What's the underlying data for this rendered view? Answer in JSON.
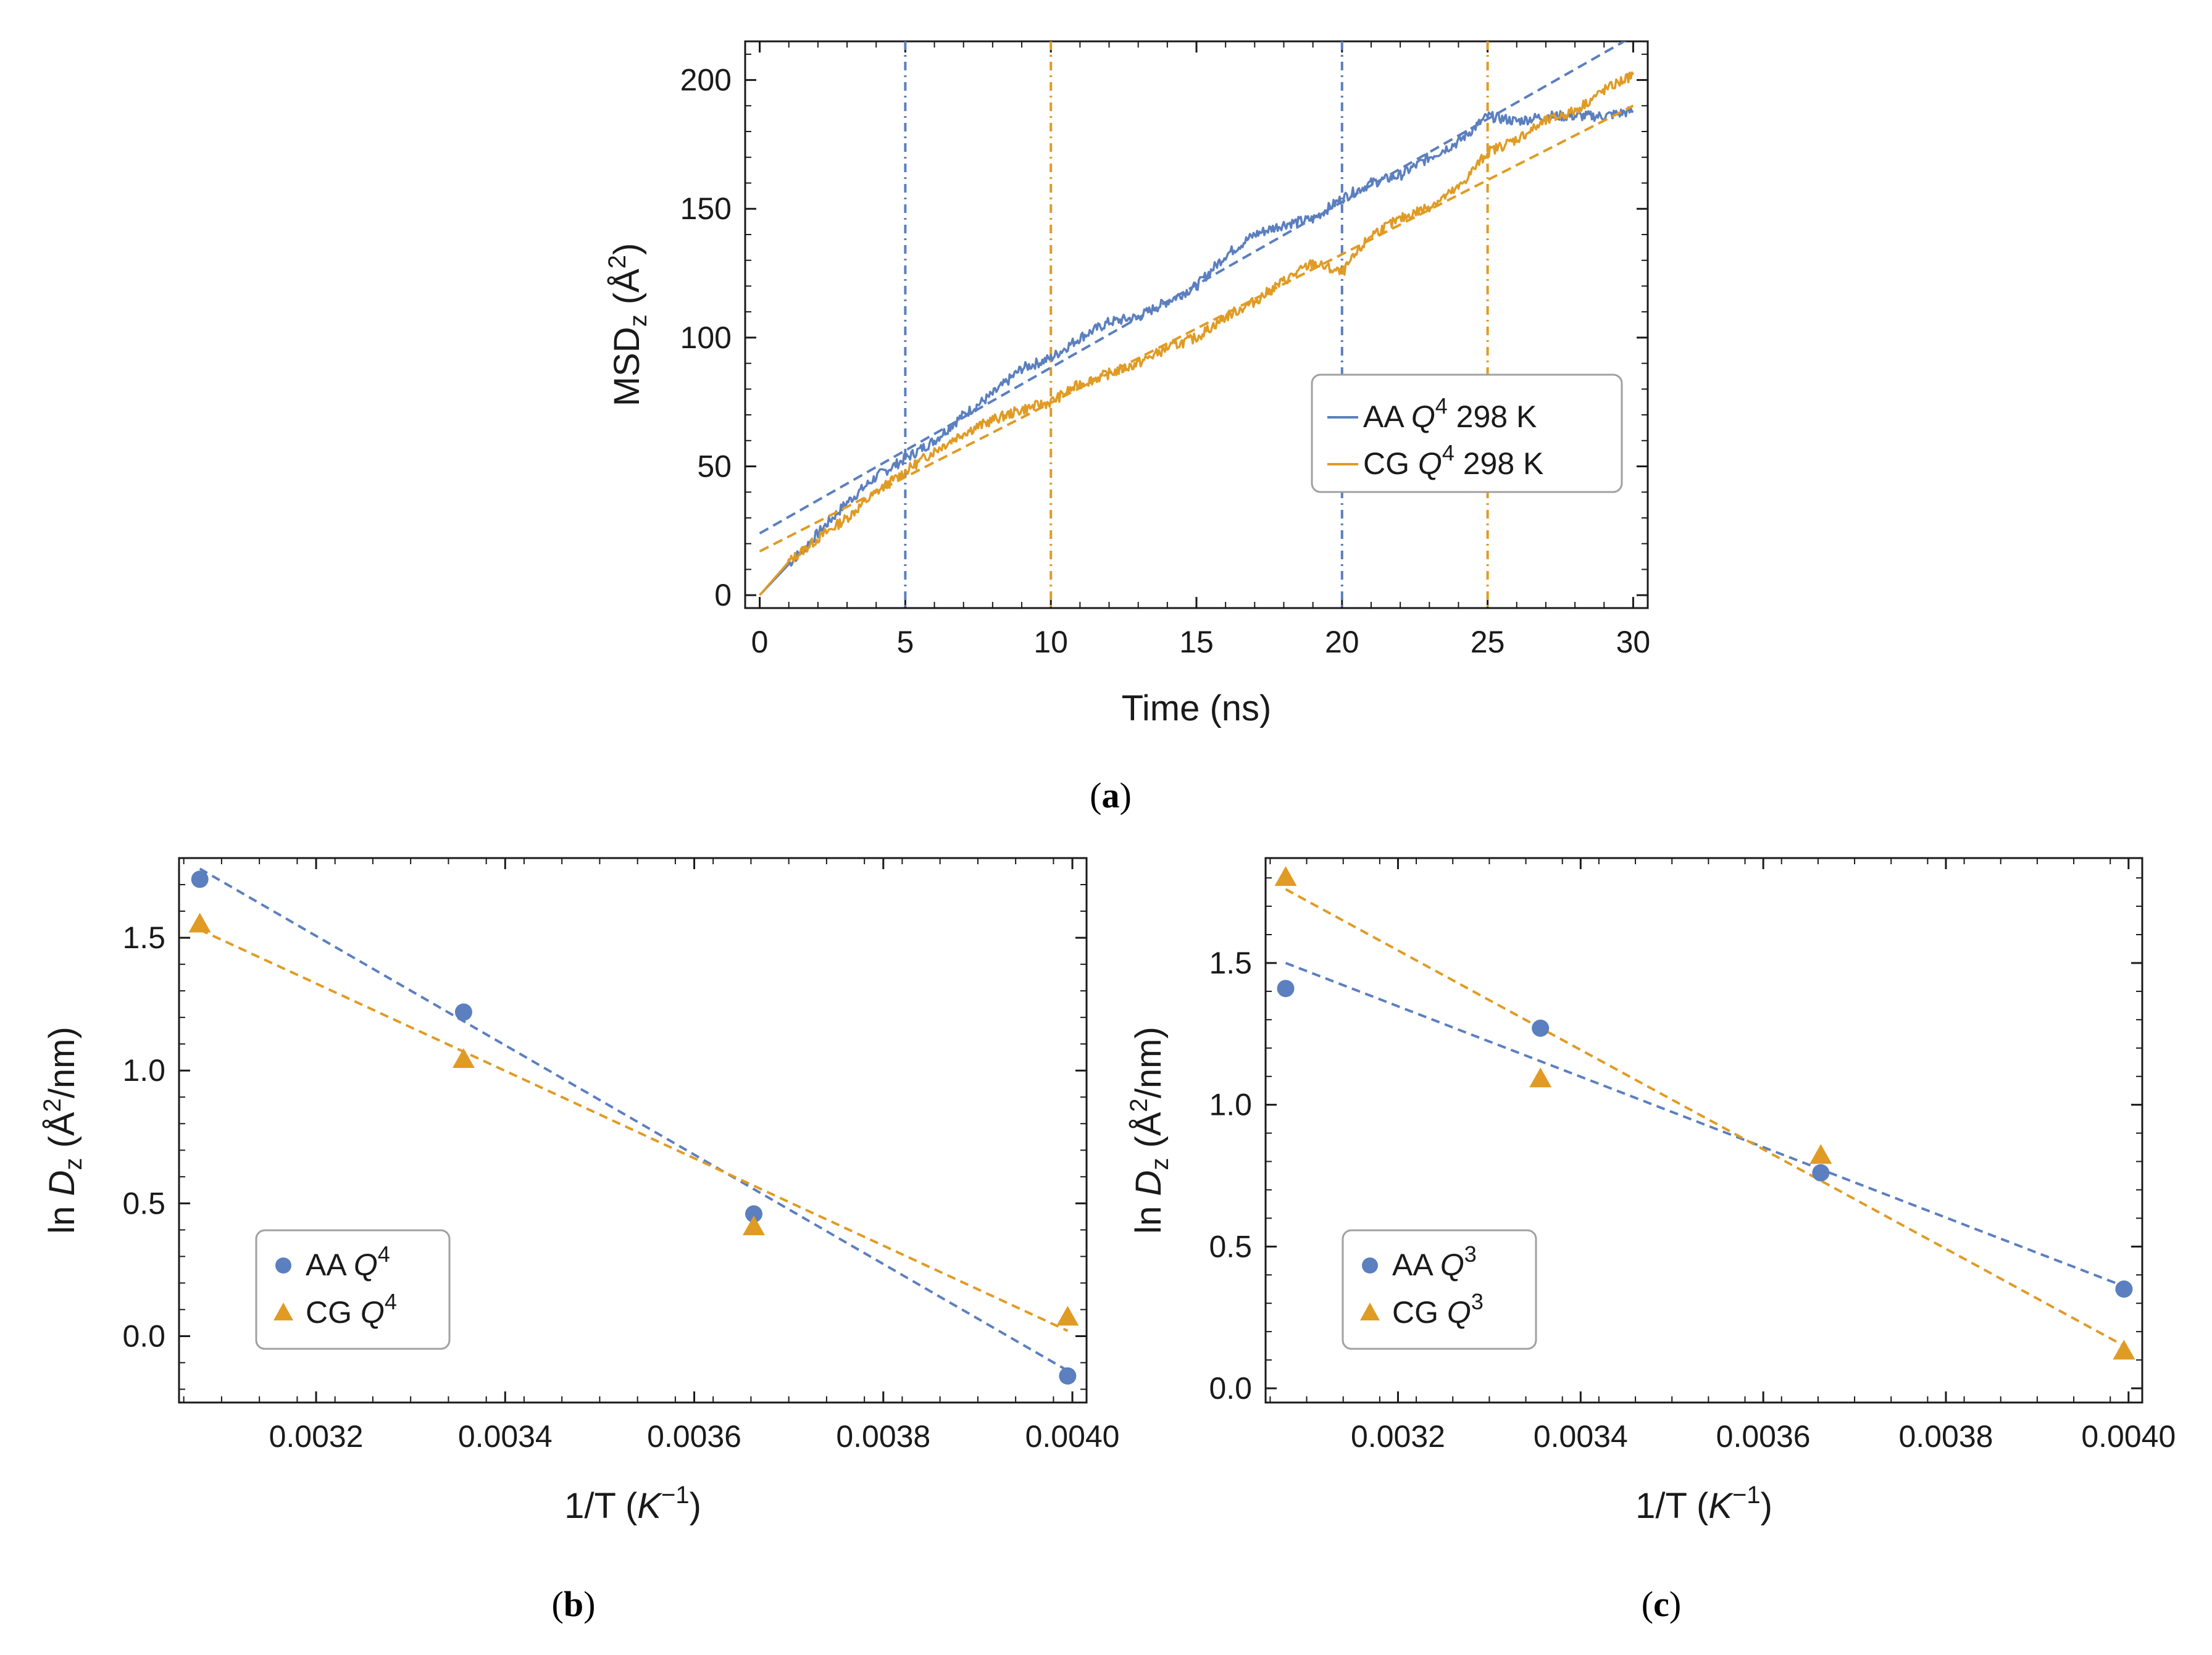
{
  "colors": {
    "aa": "#5b7fbf",
    "cg": "#e09b24",
    "axis": "#1a1a1a",
    "legend_border": "#a0a0a0"
  },
  "chart_data": [
    {
      "id": "a",
      "type": "line",
      "caption_letter": "a",
      "xlabel": "Time (ns)",
      "ylabel_main": "MSD",
      "ylabel_sub": "z",
      "ylabel_unit": " (Å",
      "ylabel_sup": "2",
      "ylabel_close": ")",
      "xlim": [
        -0.5,
        30.5
      ],
      "ylim": [
        -5,
        215
      ],
      "xticks": [
        0,
        5,
        10,
        15,
        20,
        25,
        30
      ],
      "yticks": [
        0,
        50,
        100,
        150,
        200
      ],
      "vlines": [
        {
          "x": 5,
          "series": "aa"
        },
        {
          "x": 20,
          "series": "aa"
        },
        {
          "x": 10,
          "series": "cg"
        },
        {
          "x": 25,
          "series": "cg"
        }
      ],
      "series": [
        {
          "key": "aa",
          "name": "AA",
          "q": "Q",
          "q_sup": "4",
          "suffix": " 298 K",
          "x": [
            0,
            1,
            2,
            3,
            4,
            5,
            6,
            7,
            8,
            9,
            10,
            11,
            12,
            13,
            14,
            15,
            16,
            17,
            18,
            19,
            20,
            21,
            22,
            23,
            24,
            25,
            26,
            27,
            28,
            29,
            30
          ],
          "y": [
            0,
            12,
            24,
            36,
            46,
            53,
            60,
            70,
            78,
            88,
            92,
            100,
            106,
            108,
            114,
            120,
            132,
            140,
            144,
            146,
            154,
            160,
            163,
            170,
            176,
            186,
            184,
            186,
            186,
            186,
            188
          ],
          "fit": {
            "x": [
              0,
              30
            ],
            "y": [
              24,
              217
            ]
          }
        },
        {
          "key": "cg",
          "name": "CG",
          "q": "Q",
          "q_sup": "4",
          "suffix": " 298 K",
          "x": [
            0,
            1,
            2,
            3,
            4,
            5,
            6,
            7,
            8,
            9,
            10,
            11,
            12,
            13,
            14,
            15,
            16,
            17,
            18,
            19,
            20,
            21,
            22,
            23,
            24,
            25,
            26,
            27,
            28,
            29,
            30
          ],
          "y": [
            0,
            13,
            22,
            30,
            40,
            48,
            56,
            63,
            68,
            72,
            75,
            82,
            86,
            90,
            96,
            100,
            108,
            114,
            122,
            129,
            125,
            140,
            146,
            151,
            158,
            172,
            177,
            184,
            188,
            196,
            202
          ],
          "fit": {
            "x": [
              0,
              30
            ],
            "y": [
              17,
              190
            ]
          }
        }
      ]
    },
    {
      "id": "b",
      "type": "scatter",
      "caption_letter": "b",
      "xlabel": "1/T (",
      "xlabel_italic": "K",
      "xlabel_sup": "−1",
      "xlabel_close": ")",
      "ylabel_main": "ln ",
      "ylabel_italic": "D",
      "ylabel_sub": "z",
      "ylabel_unit": " (Å",
      "ylabel_sup": "2",
      "ylabel_close": "/nm)",
      "xlim": [
        0.003055,
        0.004015
      ],
      "ylim": [
        -0.25,
        1.8
      ],
      "xticks": [
        0.0032,
        0.0034,
        0.0036,
        0.0038,
        0.004
      ],
      "xtick_labels": [
        "0.0032",
        "0.0034",
        "0.0036",
        "0.0038",
        "0.0040"
      ],
      "yticks": [
        0,
        0.5,
        1,
        1.5
      ],
      "ytick_labels": [
        "0.0",
        "0.5",
        "1.0",
        "1.5"
      ],
      "series": [
        {
          "key": "aa",
          "name": "AA",
          "q": "Q",
          "q_sup": "4",
          "marker": "circle",
          "x": [
            0.003077,
            0.003356,
            0.003663,
            0.003995
          ],
          "y": [
            1.72,
            1.22,
            0.46,
            -0.15
          ],
          "fit": {
            "x": [
              0.003077,
              0.003995
            ],
            "y": [
              1.76,
              -0.13
            ]
          }
        },
        {
          "key": "cg",
          "name": "CG",
          "q": "Q",
          "q_sup": "4",
          "marker": "triangle",
          "x": [
            0.003077,
            0.003356,
            0.003663,
            0.003995
          ],
          "y": [
            1.55,
            1.04,
            0.41,
            0.07
          ],
          "fit": {
            "x": [
              0.003077,
              0.003995
            ],
            "y": [
              1.53,
              0.02
            ]
          }
        }
      ]
    },
    {
      "id": "c",
      "type": "scatter",
      "caption_letter": "c",
      "xlabel": "1/T (",
      "xlabel_italic": "K",
      "xlabel_sup": "−1",
      "xlabel_close": ")",
      "ylabel_main": "ln ",
      "ylabel_italic": "D",
      "ylabel_sub": "z",
      "ylabel_unit": " (Å",
      "ylabel_sup": "2",
      "ylabel_close": "/nm)",
      "xlim": [
        0.003055,
        0.004015
      ],
      "ylim": [
        -0.05,
        1.87
      ],
      "xticks": [
        0.0032,
        0.0034,
        0.0036,
        0.0038,
        0.004
      ],
      "xtick_labels": [
        "0.0032",
        "0.0034",
        "0.0036",
        "0.0038",
        "0.0040"
      ],
      "yticks": [
        0,
        0.5,
        1,
        1.5
      ],
      "ytick_labels": [
        "0.0",
        "0.5",
        "1.0",
        "1.5"
      ],
      "series": [
        {
          "key": "aa",
          "name": "AA",
          "q": "Q",
          "q_sup": "3",
          "marker": "circle",
          "x": [
            0.003077,
            0.003356,
            0.003663,
            0.003995
          ],
          "y": [
            1.41,
            1.27,
            0.76,
            0.35
          ],
          "fit": {
            "x": [
              0.003077,
              0.003995
            ],
            "y": [
              1.5,
              0.36
            ]
          }
        },
        {
          "key": "cg",
          "name": "CG",
          "q": "Q",
          "q_sup": "3",
          "marker": "triangle",
          "x": [
            0.003077,
            0.003356,
            0.003663,
            0.003995
          ],
          "y": [
            1.8,
            1.09,
            0.82,
            0.13
          ],
          "fit": {
            "x": [
              0.003077,
              0.003995
            ],
            "y": [
              1.76,
              0.15
            ]
          }
        }
      ]
    }
  ]
}
